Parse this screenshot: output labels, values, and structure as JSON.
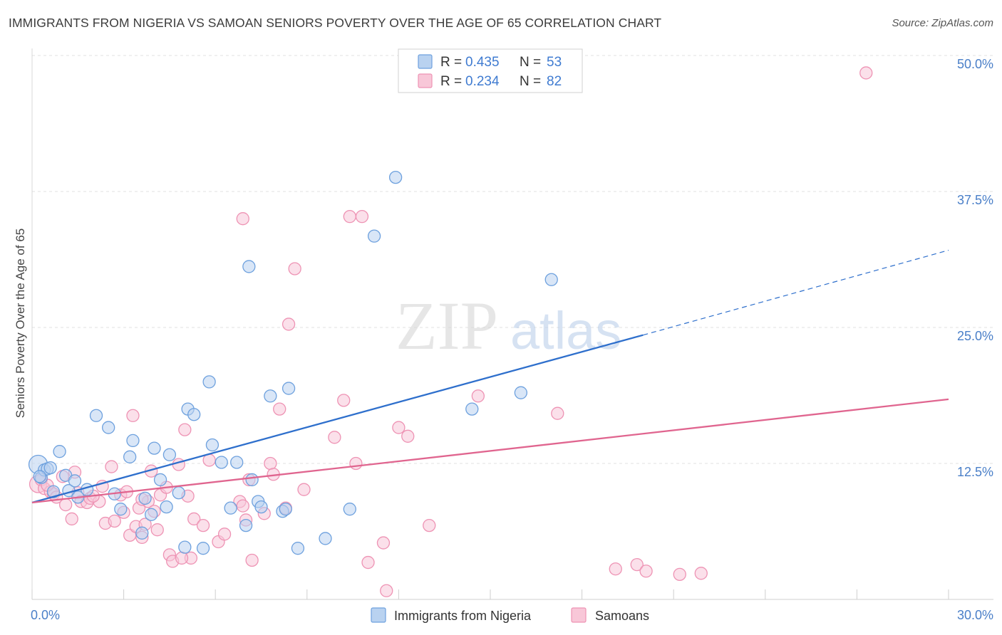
{
  "title": "IMMIGRANTS FROM NIGERIA VS SAMOAN SENIORS POVERTY OVER THE AGE OF 65 CORRELATION CHART",
  "source": "Source: ZipAtlas.com",
  "watermark": {
    "zip": "ZIP",
    "atlas": "atlas"
  },
  "chart_data": {
    "type": "scatter",
    "title": "IMMIGRANTS FROM NIGERIA VS SAMOAN SENIORS POVERTY OVER THE AGE OF 65 CORRELATION CHART",
    "xlabel": "",
    "ylabel": "Seniors Poverty Over the Age of 65",
    "xlim": [
      0,
      30
    ],
    "ylim": [
      0,
      50
    ],
    "x_tick_labels": [
      "0.0%",
      "30.0%"
    ],
    "y_ticks": [
      {
        "value": 12.5,
        "label": "12.5%"
      },
      {
        "value": 25.0,
        "label": "25.0%"
      },
      {
        "value": 37.5,
        "label": "37.5%"
      },
      {
        "value": 50.0,
        "label": "50.0%"
      }
    ],
    "grid": "horizontal-dashed",
    "legend_top": [
      {
        "r_label": "R = ",
        "r_value": "0.435",
        "n_label": "N = ",
        "n_value": "53"
      },
      {
        "r_label": "R = ",
        "r_value": "0.234",
        "n_label": "N = ",
        "n_value": "82"
      }
    ],
    "series": [
      {
        "name": "Immigrants from Nigeria",
        "color": "#6ea1de",
        "fill": "#b9d2f0",
        "trend": {
          "x0": 0,
          "y0": 8.9,
          "x1": 20.0,
          "y1": 24.3,
          "dash_to_x": 30,
          "dash_to_y": 32.1,
          "color": "#2e6fcc"
        },
        "points": [
          [
            0.2,
            12.4
          ],
          [
            0.3,
            11.2
          ],
          [
            0.4,
            11.9
          ],
          [
            0.5,
            12.0
          ],
          [
            0.7,
            9.9
          ],
          [
            0.9,
            13.6
          ],
          [
            1.1,
            11.4
          ],
          [
            1.2,
            10.0
          ],
          [
            1.4,
            10.9
          ],
          [
            1.5,
            9.4
          ],
          [
            2.1,
            16.9
          ],
          [
            2.5,
            15.8
          ],
          [
            2.7,
            9.7
          ],
          [
            2.9,
            8.3
          ],
          [
            3.2,
            13.1
          ],
          [
            3.3,
            14.6
          ],
          [
            3.6,
            6.1
          ],
          [
            3.7,
            9.3
          ],
          [
            3.9,
            7.8
          ],
          [
            4.0,
            13.9
          ],
          [
            4.2,
            11.0
          ],
          [
            4.4,
            8.5
          ],
          [
            4.5,
            13.3
          ],
          [
            4.8,
            9.8
          ],
          [
            5.0,
            4.8
          ],
          [
            5.1,
            17.5
          ],
          [
            5.3,
            17.0
          ],
          [
            5.6,
            4.7
          ],
          [
            5.8,
            20.0
          ],
          [
            5.9,
            14.2
          ],
          [
            6.2,
            12.6
          ],
          [
            6.5,
            8.4
          ],
          [
            6.7,
            12.6
          ],
          [
            7.0,
            6.8
          ],
          [
            7.1,
            30.6
          ],
          [
            7.2,
            11.0
          ],
          [
            7.4,
            9.0
          ],
          [
            7.5,
            8.5
          ],
          [
            7.8,
            18.7
          ],
          [
            8.2,
            8.1
          ],
          [
            8.3,
            8.3
          ],
          [
            8.4,
            19.4
          ],
          [
            8.7,
            4.7
          ],
          [
            9.6,
            5.6
          ],
          [
            10.4,
            8.3
          ],
          [
            11.9,
            38.8
          ],
          [
            11.2,
            33.4
          ],
          [
            14.4,
            17.5
          ],
          [
            16.0,
            19.0
          ],
          [
            17.0,
            29.4
          ],
          [
            0.25,
            11.3
          ],
          [
            0.6,
            12.1
          ],
          [
            1.8,
            10.1
          ]
        ]
      },
      {
        "name": "Samoans",
        "color": "#ee93b4",
        "fill": "#f8c7d8",
        "trend": {
          "x0": 0,
          "y0": 8.9,
          "x1": 30,
          "y1": 18.4,
          "color": "#e0658f"
        },
        "points": [
          [
            0.2,
            10.6
          ],
          [
            0.3,
            11.0
          ],
          [
            0.4,
            10.2
          ],
          [
            0.6,
            9.9
          ],
          [
            0.7,
            9.7
          ],
          [
            0.8,
            9.4
          ],
          [
            1.0,
            11.3
          ],
          [
            1.1,
            8.7
          ],
          [
            1.3,
            7.4
          ],
          [
            1.5,
            9.8
          ],
          [
            1.6,
            9.0
          ],
          [
            1.8,
            8.9
          ],
          [
            1.9,
            9.3
          ],
          [
            2.2,
            9.0
          ],
          [
            2.3,
            10.4
          ],
          [
            2.4,
            7.0
          ],
          [
            2.6,
            12.2
          ],
          [
            2.7,
            7.2
          ],
          [
            2.9,
            9.6
          ],
          [
            3.0,
            8.0
          ],
          [
            3.1,
            9.9
          ],
          [
            3.2,
            5.9
          ],
          [
            3.3,
            16.9
          ],
          [
            3.4,
            6.7
          ],
          [
            3.5,
            8.4
          ],
          [
            3.6,
            5.7
          ],
          [
            3.7,
            6.9
          ],
          [
            3.8,
            9.0
          ],
          [
            3.9,
            11.8
          ],
          [
            4.0,
            8.1
          ],
          [
            4.1,
            6.4
          ],
          [
            4.2,
            9.6
          ],
          [
            4.4,
            10.3
          ],
          [
            4.5,
            4.1
          ],
          [
            4.6,
            3.5
          ],
          [
            4.8,
            12.4
          ],
          [
            5.0,
            15.6
          ],
          [
            5.1,
            9.5
          ],
          [
            5.2,
            3.8
          ],
          [
            5.3,
            7.4
          ],
          [
            5.6,
            6.8
          ],
          [
            5.8,
            12.8
          ],
          [
            6.1,
            5.3
          ],
          [
            6.3,
            6.0
          ],
          [
            6.8,
            9.0
          ],
          [
            6.9,
            35.0
          ],
          [
            7.0,
            7.3
          ],
          [
            7.1,
            11.0
          ],
          [
            7.2,
            3.6
          ],
          [
            7.6,
            7.9
          ],
          [
            7.8,
            12.5
          ],
          [
            7.9,
            11.5
          ],
          [
            8.1,
            17.5
          ],
          [
            8.3,
            8.4
          ],
          [
            8.9,
            10.1
          ],
          [
            8.4,
            25.3
          ],
          [
            8.6,
            30.4
          ],
          [
            9.9,
            14.9
          ],
          [
            10.2,
            18.3
          ],
          [
            10.4,
            35.2
          ],
          [
            10.8,
            35.2
          ],
          [
            10.6,
            12.5
          ],
          [
            11.0,
            3.4
          ],
          [
            11.5,
            5.2
          ],
          [
            11.6,
            0.8
          ],
          [
            12.0,
            15.8
          ],
          [
            12.3,
            15.0
          ],
          [
            13.0,
            6.8
          ],
          [
            14.6,
            18.7
          ],
          [
            17.2,
            17.1
          ],
          [
            19.1,
            2.8
          ],
          [
            19.8,
            3.2
          ],
          [
            20.1,
            2.6
          ],
          [
            21.2,
            2.3
          ],
          [
            21.9,
            2.4
          ],
          [
            27.3,
            48.4
          ],
          [
            0.5,
            10.5
          ],
          [
            1.4,
            11.7
          ],
          [
            2.0,
            9.5
          ],
          [
            3.6,
            9.2
          ],
          [
            4.9,
            3.8
          ],
          [
            6.9,
            8.6
          ]
        ]
      }
    ]
  }
}
